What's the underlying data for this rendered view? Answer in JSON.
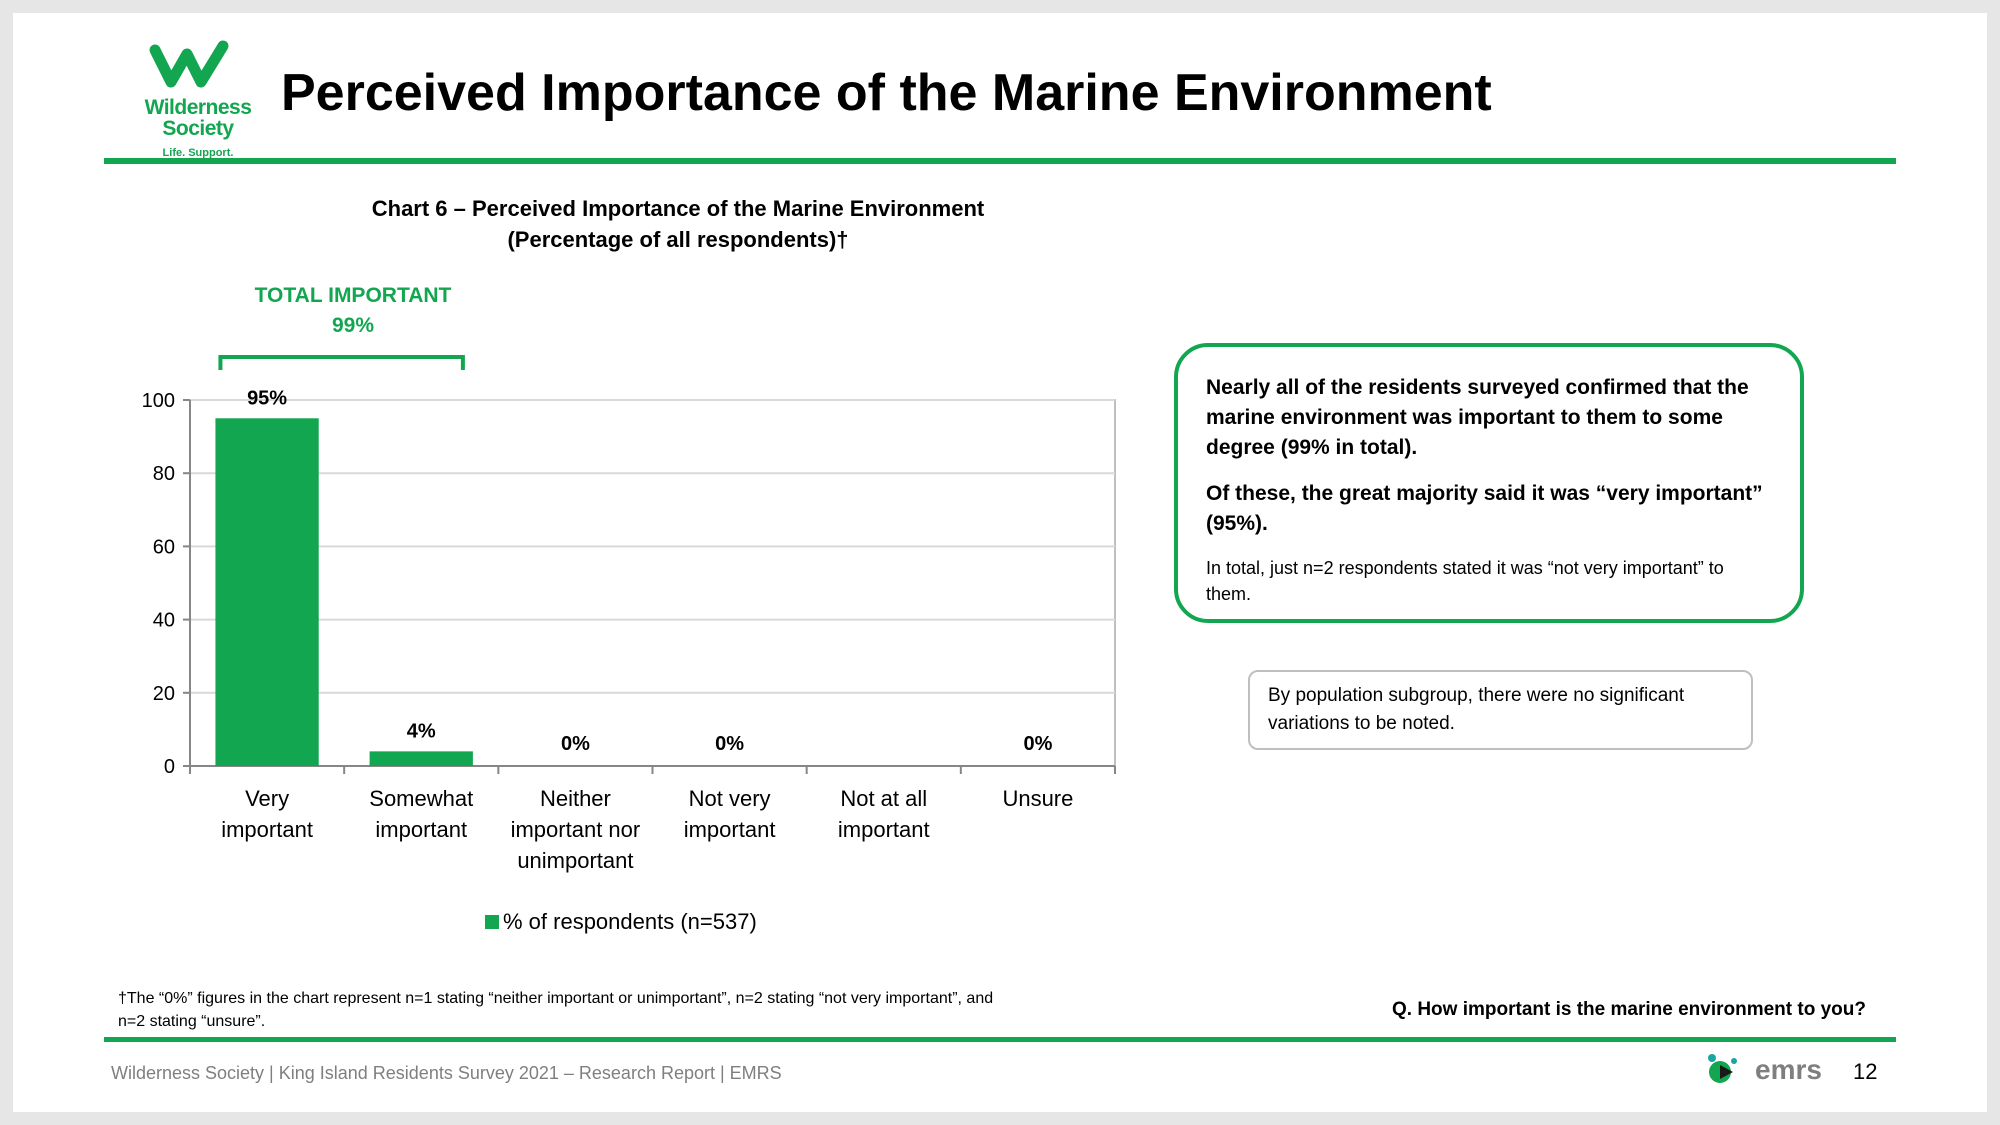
{
  "header": {
    "logo_name": "Wilderness Society",
    "logo_tagline": "Life. Support.",
    "title": "Perceived Importance of the Marine Environment"
  },
  "chart_title_line1": "Chart 6 – Perceived Importance of the Marine Environment",
  "chart_title_line2": "(Percentage of all respondents)†",
  "total_important": {
    "label": "TOTAL IMPORTANT",
    "value": "99%"
  },
  "chart_data": {
    "type": "bar",
    "title": "Chart 6 – Perceived Importance of the Marine Environment (Percentage of all respondents)†",
    "categories": [
      [
        "Very",
        "important"
      ],
      [
        "Somewhat",
        "important"
      ],
      [
        "Neither",
        "important nor",
        "unimportant"
      ],
      [
        "Not very",
        "important"
      ],
      [
        "Not at all",
        "important"
      ],
      [
        "Unsure"
      ]
    ],
    "series": [
      {
        "name": "% of respondents (n=537)",
        "values": [
          95,
          4,
          0,
          0,
          null,
          0
        ]
      }
    ],
    "data_labels": [
      "95%",
      "4%",
      "0%",
      "0%",
      "",
      "0%"
    ],
    "ylim": [
      0,
      100
    ],
    "yticks": [
      0,
      20,
      40,
      60,
      80,
      100
    ],
    "grid": true,
    "legend": "bottom",
    "bar_color": "#12a650"
  },
  "legend_label": "% of respondents (n=537)",
  "insight": {
    "p1": "Nearly all of the residents surveyed confirmed that the marine environment was important to them to some degree (99% in total).",
    "p2": "Of these, the great majority said it was “very important” (95%).",
    "p3": "In total, just n=2 respondents stated it was “not very important” to them."
  },
  "subgroup_note": "By population subgroup, there were no significant variations to be noted.",
  "footnote": "†The “0%” figures in the chart represent n=1 stating “neither important or unimportant”, n=2 stating “not very important”, and n=2 stating “unsure”.",
  "question": "Q. How important is the marine environment to you?",
  "footer": {
    "text": "Wilderness Society | King Island Residents Survey 2021 – Research Report | EMRS",
    "brand": "emrs",
    "page_number": "12"
  },
  "colors": {
    "accent": "#12a650",
    "footer_grey": "#7f7f7f"
  }
}
